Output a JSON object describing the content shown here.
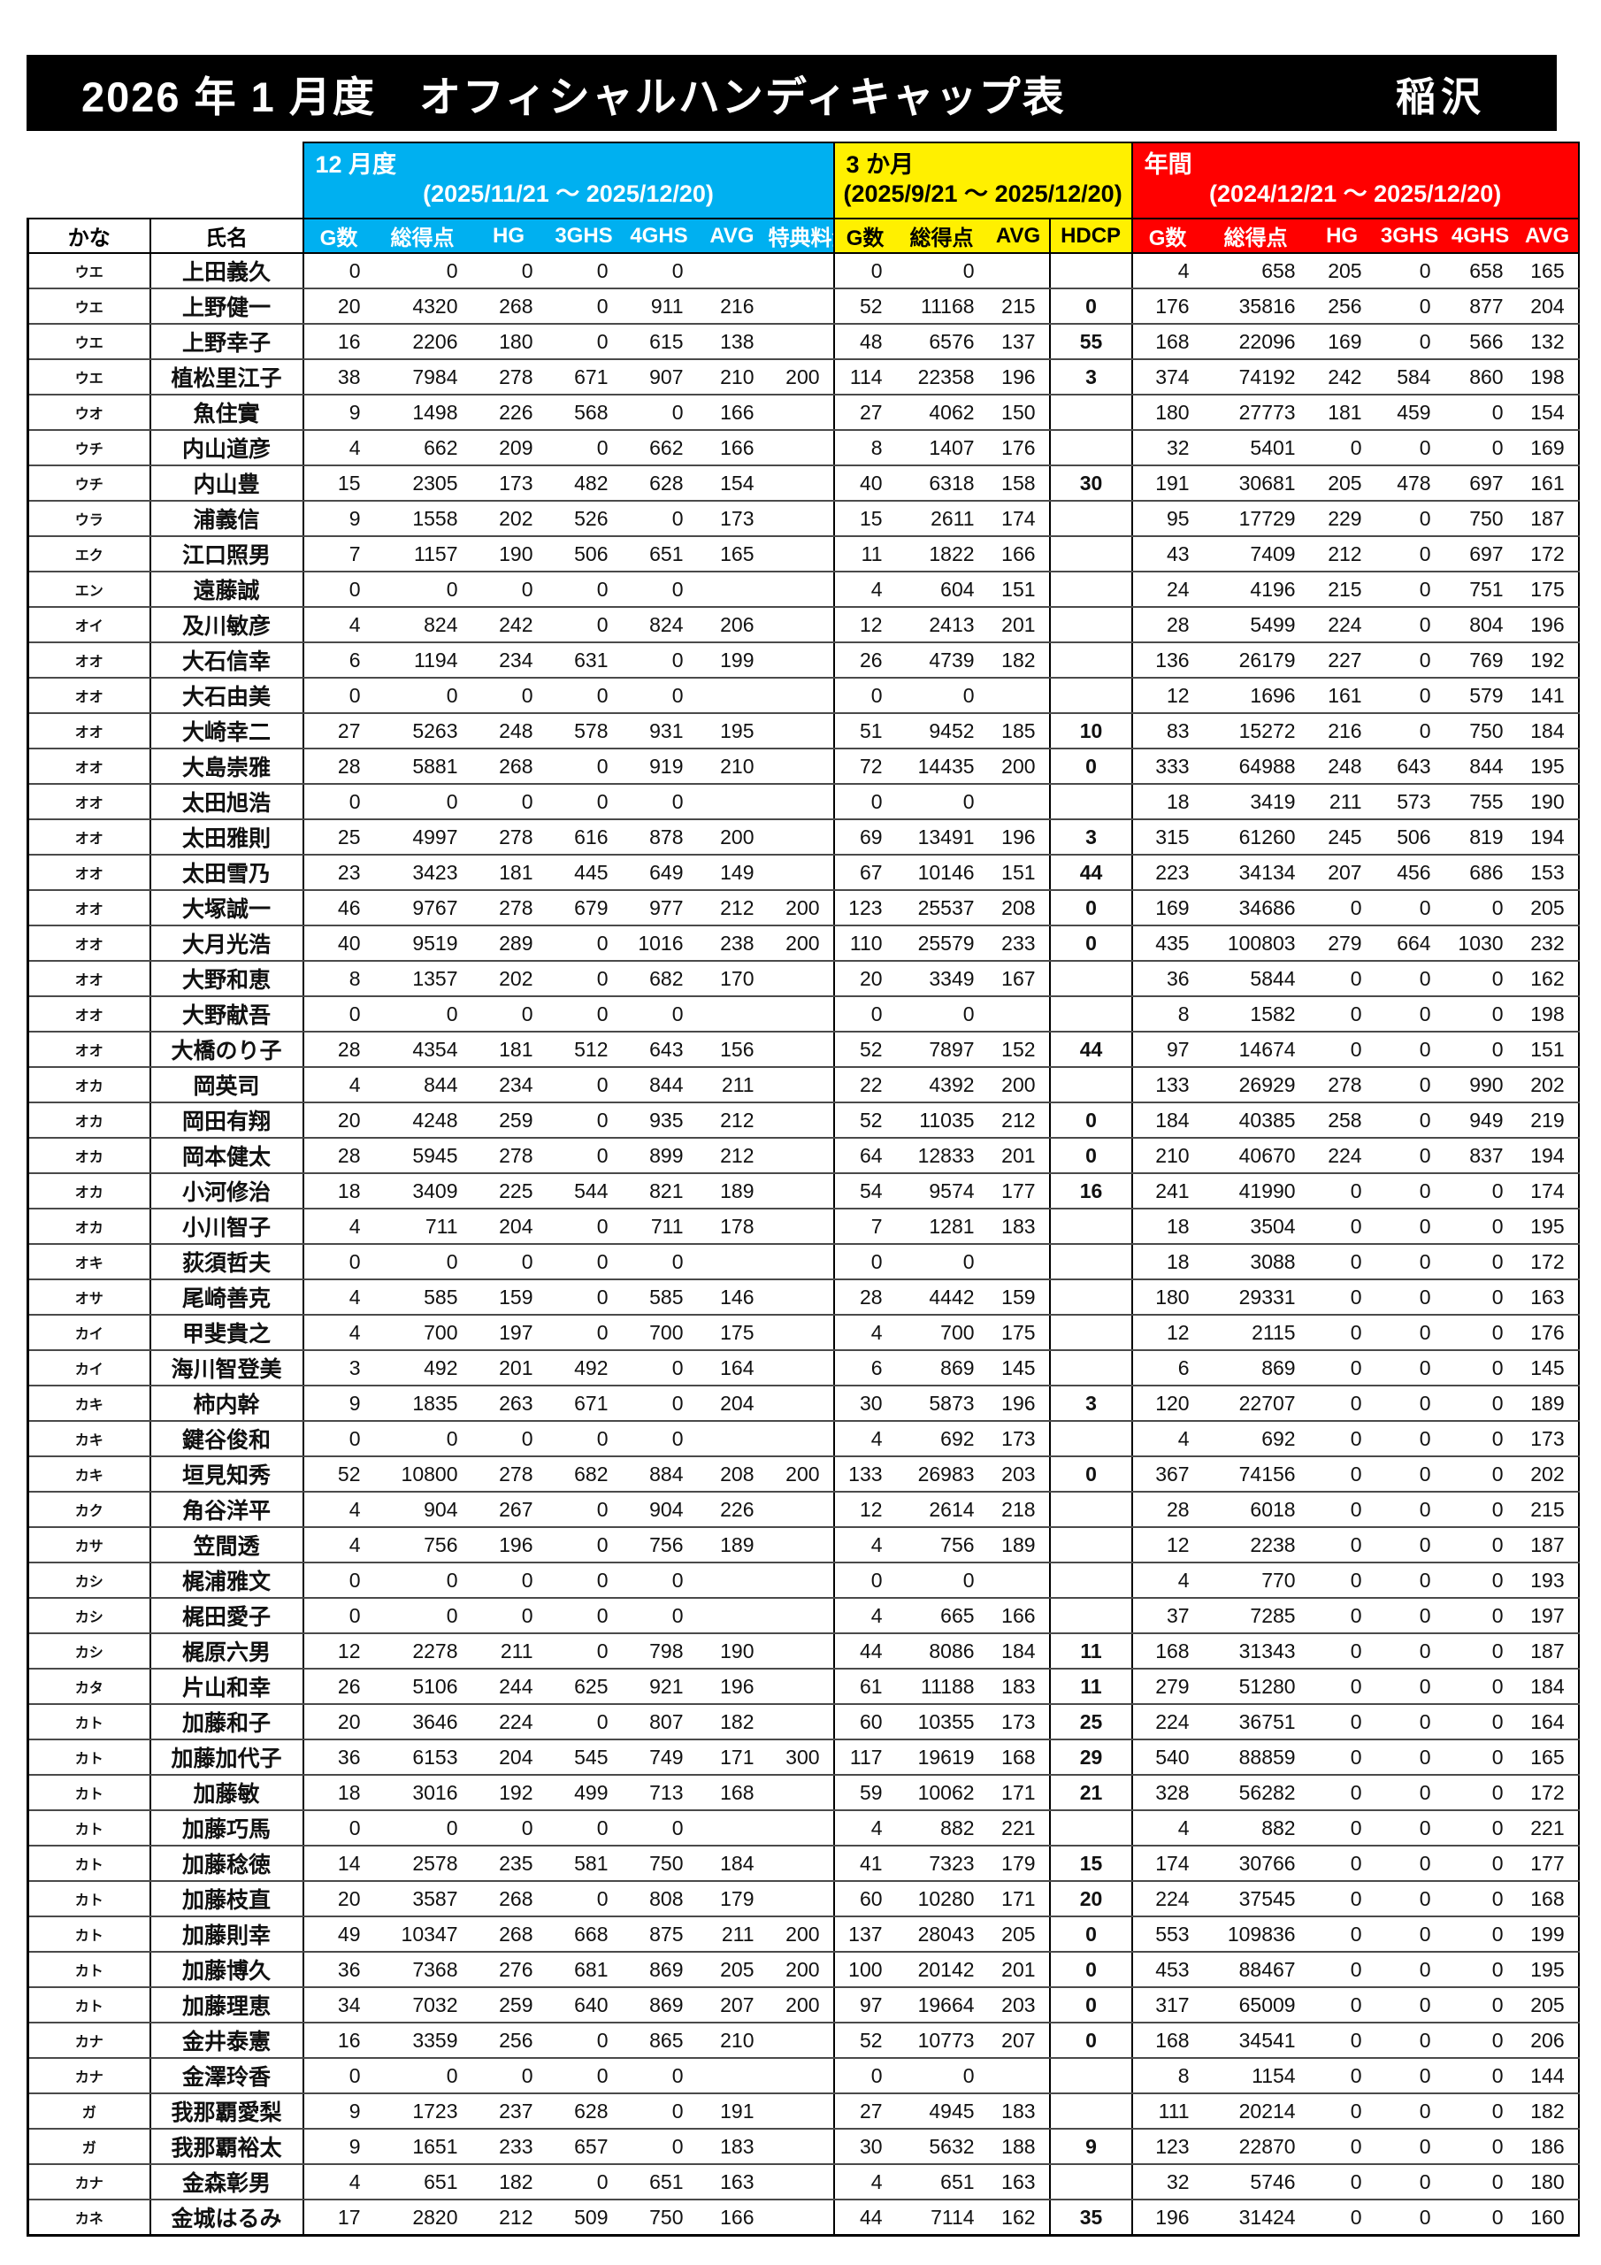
{
  "title": {
    "heading": "2026 年 1 月度　オフィシャルハンディキャップ表",
    "location": "稲沢"
  },
  "columns": {
    "kana": "かな",
    "name": "氏名"
  },
  "sections": {
    "monthly": {
      "label": "12 月度",
      "range": "(2025/11/21 ～ 2025/12/20)",
      "color": "#00B0F0",
      "headers": [
        "G数",
        "総得点",
        "HG",
        "3GHS",
        "4GHS",
        "AVG",
        "特典料金"
      ]
    },
    "quarter": {
      "label": "3 か月",
      "range": "(2025/9/21 ～ 2025/12/20)",
      "color": "#FFF000",
      "headers": [
        "G数",
        "総得点",
        "AVG"
      ]
    },
    "hdcp": {
      "label": "HDCP"
    },
    "annual": {
      "label": "年間",
      "range": "(2024/12/21 ～ 2025/12/20)",
      "color": "#FF0000",
      "headers": [
        "G数",
        "総得点",
        "HG",
        "3GHS",
        "4GHS",
        "AVG"
      ]
    }
  },
  "rows": [
    [
      "ウエ",
      "上田義久",
      "0",
      "0",
      "0",
      "0",
      "0",
      "",
      "",
      "0",
      "0",
      "",
      "",
      "4",
      "658",
      "205",
      "0",
      "658",
      "165"
    ],
    [
      "ウエ",
      "上野健一",
      "20",
      "4320",
      "268",
      "0",
      "911",
      "216",
      "",
      "52",
      "11168",
      "215",
      "0",
      "176",
      "35816",
      "256",
      "0",
      "877",
      "204"
    ],
    [
      "ウエ",
      "上野幸子",
      "16",
      "2206",
      "180",
      "0",
      "615",
      "138",
      "",
      "48",
      "6576",
      "137",
      "55",
      "168",
      "22096",
      "169",
      "0",
      "566",
      "132"
    ],
    [
      "ウエ",
      "植松里江子",
      "38",
      "7984",
      "278",
      "671",
      "907",
      "210",
      "200",
      "114",
      "22358",
      "196",
      "3",
      "374",
      "74192",
      "242",
      "584",
      "860",
      "198"
    ],
    [
      "ウオ",
      "魚住實",
      "9",
      "1498",
      "226",
      "568",
      "0",
      "166",
      "",
      "27",
      "4062",
      "150",
      "",
      "180",
      "27773",
      "181",
      "459",
      "0",
      "154"
    ],
    [
      "ウチ",
      "内山道彦",
      "4",
      "662",
      "209",
      "0",
      "662",
      "166",
      "",
      "8",
      "1407",
      "176",
      "",
      "32",
      "5401",
      "0",
      "0",
      "0",
      "169"
    ],
    [
      "ウチ",
      "内山豊",
      "15",
      "2305",
      "173",
      "482",
      "628",
      "154",
      "",
      "40",
      "6318",
      "158",
      "30",
      "191",
      "30681",
      "205",
      "478",
      "697",
      "161"
    ],
    [
      "ウラ",
      "浦義信",
      "9",
      "1558",
      "202",
      "526",
      "0",
      "173",
      "",
      "15",
      "2611",
      "174",
      "",
      "95",
      "17729",
      "229",
      "0",
      "750",
      "187"
    ],
    [
      "エク",
      "江口照男",
      "7",
      "1157",
      "190",
      "506",
      "651",
      "165",
      "",
      "11",
      "1822",
      "166",
      "",
      "43",
      "7409",
      "212",
      "0",
      "697",
      "172"
    ],
    [
      "エン",
      "遠藤誠",
      "0",
      "0",
      "0",
      "0",
      "0",
      "",
      "",
      "4",
      "604",
      "151",
      "",
      "24",
      "4196",
      "215",
      "0",
      "751",
      "175"
    ],
    [
      "オイ",
      "及川敏彦",
      "4",
      "824",
      "242",
      "0",
      "824",
      "206",
      "",
      "12",
      "2413",
      "201",
      "",
      "28",
      "5499",
      "224",
      "0",
      "804",
      "196"
    ],
    [
      "オオ",
      "大石信幸",
      "6",
      "1194",
      "234",
      "631",
      "0",
      "199",
      "",
      "26",
      "4739",
      "182",
      "",
      "136",
      "26179",
      "227",
      "0",
      "769",
      "192"
    ],
    [
      "オオ",
      "大石由美",
      "0",
      "0",
      "0",
      "0",
      "0",
      "",
      "",
      "0",
      "0",
      "",
      "",
      "12",
      "1696",
      "161",
      "0",
      "579",
      "141"
    ],
    [
      "オオ",
      "大崎幸二",
      "27",
      "5263",
      "248",
      "578",
      "931",
      "195",
      "",
      "51",
      "9452",
      "185",
      "10",
      "83",
      "15272",
      "216",
      "0",
      "750",
      "184"
    ],
    [
      "オオ",
      "大島崇雅",
      "28",
      "5881",
      "268",
      "0",
      "919",
      "210",
      "",
      "72",
      "14435",
      "200",
      "0",
      "333",
      "64988",
      "248",
      "643",
      "844",
      "195"
    ],
    [
      "オオ",
      "太田旭浩",
      "0",
      "0",
      "0",
      "0",
      "0",
      "",
      "",
      "0",
      "0",
      "",
      "",
      "18",
      "3419",
      "211",
      "573",
      "755",
      "190"
    ],
    [
      "オオ",
      "太田雅則",
      "25",
      "4997",
      "278",
      "616",
      "878",
      "200",
      "",
      "69",
      "13491",
      "196",
      "3",
      "315",
      "61260",
      "245",
      "506",
      "819",
      "194"
    ],
    [
      "オオ",
      "太田雪乃",
      "23",
      "3423",
      "181",
      "445",
      "649",
      "149",
      "",
      "67",
      "10146",
      "151",
      "44",
      "223",
      "34134",
      "207",
      "456",
      "686",
      "153"
    ],
    [
      "オオ",
      "大塚誠一",
      "46",
      "9767",
      "278",
      "679",
      "977",
      "212",
      "200",
      "123",
      "25537",
      "208",
      "0",
      "169",
      "34686",
      "0",
      "0",
      "0",
      "205"
    ],
    [
      "オオ",
      "大月光浩",
      "40",
      "9519",
      "289",
      "0",
      "1016",
      "238",
      "200",
      "110",
      "25579",
      "233",
      "0",
      "435",
      "100803",
      "279",
      "664",
      "1030",
      "232"
    ],
    [
      "オオ",
      "大野和恵",
      "8",
      "1357",
      "202",
      "0",
      "682",
      "170",
      "",
      "20",
      "3349",
      "167",
      "",
      "36",
      "5844",
      "0",
      "0",
      "0",
      "162"
    ],
    [
      "オオ",
      "大野献吾",
      "0",
      "0",
      "0",
      "0",
      "0",
      "",
      "",
      "0",
      "0",
      "",
      "",
      "8",
      "1582",
      "0",
      "0",
      "0",
      "198"
    ],
    [
      "オオ",
      "大橋のり子",
      "28",
      "4354",
      "181",
      "512",
      "643",
      "156",
      "",
      "52",
      "7897",
      "152",
      "44",
      "97",
      "14674",
      "0",
      "0",
      "0",
      "151"
    ],
    [
      "オカ",
      "岡英司",
      "4",
      "844",
      "234",
      "0",
      "844",
      "211",
      "",
      "22",
      "4392",
      "200",
      "",
      "133",
      "26929",
      "278",
      "0",
      "990",
      "202"
    ],
    [
      "オカ",
      "岡田有翔",
      "20",
      "4248",
      "259",
      "0",
      "935",
      "212",
      "",
      "52",
      "11035",
      "212",
      "0",
      "184",
      "40385",
      "258",
      "0",
      "949",
      "219"
    ],
    [
      "オカ",
      "岡本健太",
      "28",
      "5945",
      "278",
      "0",
      "899",
      "212",
      "",
      "64",
      "12833",
      "201",
      "0",
      "210",
      "40670",
      "224",
      "0",
      "837",
      "194"
    ],
    [
      "オカ",
      "小河修治",
      "18",
      "3409",
      "225",
      "544",
      "821",
      "189",
      "",
      "54",
      "9574",
      "177",
      "16",
      "241",
      "41990",
      "0",
      "0",
      "0",
      "174"
    ],
    [
      "オカ",
      "小川智子",
      "4",
      "711",
      "204",
      "0",
      "711",
      "178",
      "",
      "7",
      "1281",
      "183",
      "",
      "18",
      "3504",
      "0",
      "0",
      "0",
      "195"
    ],
    [
      "オキ",
      "荻須哲夫",
      "0",
      "0",
      "0",
      "0",
      "0",
      "",
      "",
      "0",
      "0",
      "",
      "",
      "18",
      "3088",
      "0",
      "0",
      "0",
      "172"
    ],
    [
      "オサ",
      "尾崎善克",
      "4",
      "585",
      "159",
      "0",
      "585",
      "146",
      "",
      "28",
      "4442",
      "159",
      "",
      "180",
      "29331",
      "0",
      "0",
      "0",
      "163"
    ],
    [
      "カイ",
      "甲斐貴之",
      "4",
      "700",
      "197",
      "0",
      "700",
      "175",
      "",
      "4",
      "700",
      "175",
      "",
      "12",
      "2115",
      "0",
      "0",
      "0",
      "176"
    ],
    [
      "カイ",
      "海川智登美",
      "3",
      "492",
      "201",
      "492",
      "0",
      "164",
      "",
      "6",
      "869",
      "145",
      "",
      "6",
      "869",
      "0",
      "0",
      "0",
      "145"
    ],
    [
      "カキ",
      "柿内幹",
      "9",
      "1835",
      "263",
      "671",
      "0",
      "204",
      "",
      "30",
      "5873",
      "196",
      "3",
      "120",
      "22707",
      "0",
      "0",
      "0",
      "189"
    ],
    [
      "カキ",
      "鍵谷俊和",
      "0",
      "0",
      "0",
      "0",
      "0",
      "",
      "",
      "4",
      "692",
      "173",
      "",
      "4",
      "692",
      "0",
      "0",
      "0",
      "173"
    ],
    [
      "カキ",
      "垣見知秀",
      "52",
      "10800",
      "278",
      "682",
      "884",
      "208",
      "200",
      "133",
      "26983",
      "203",
      "0",
      "367",
      "74156",
      "0",
      "0",
      "0",
      "202"
    ],
    [
      "カク",
      "角谷洋平",
      "4",
      "904",
      "267",
      "0",
      "904",
      "226",
      "",
      "12",
      "2614",
      "218",
      "",
      "28",
      "6018",
      "0",
      "0",
      "0",
      "215"
    ],
    [
      "カサ",
      "笠間透",
      "4",
      "756",
      "196",
      "0",
      "756",
      "189",
      "",
      "4",
      "756",
      "189",
      "",
      "12",
      "2238",
      "0",
      "0",
      "0",
      "187"
    ],
    [
      "カシ",
      "梶浦雅文",
      "0",
      "0",
      "0",
      "0",
      "0",
      "",
      "",
      "0",
      "0",
      "",
      "",
      "4",
      "770",
      "0",
      "0",
      "0",
      "193"
    ],
    [
      "カシ",
      "梶田愛子",
      "0",
      "0",
      "0",
      "0",
      "0",
      "",
      "",
      "4",
      "665",
      "166",
      "",
      "37",
      "7285",
      "0",
      "0",
      "0",
      "197"
    ],
    [
      "カシ",
      "梶原六男",
      "12",
      "2278",
      "211",
      "0",
      "798",
      "190",
      "",
      "44",
      "8086",
      "184",
      "11",
      "168",
      "31343",
      "0",
      "0",
      "0",
      "187"
    ],
    [
      "カタ",
      "片山和幸",
      "26",
      "5106",
      "244",
      "625",
      "921",
      "196",
      "",
      "61",
      "11188",
      "183",
      "11",
      "279",
      "51280",
      "0",
      "0",
      "0",
      "184"
    ],
    [
      "カト",
      "加藤和子",
      "20",
      "3646",
      "224",
      "0",
      "807",
      "182",
      "",
      "60",
      "10355",
      "173",
      "25",
      "224",
      "36751",
      "0",
      "0",
      "0",
      "164"
    ],
    [
      "カト",
      "加藤加代子",
      "36",
      "6153",
      "204",
      "545",
      "749",
      "171",
      "300",
      "117",
      "19619",
      "168",
      "29",
      "540",
      "88859",
      "0",
      "0",
      "0",
      "165"
    ],
    [
      "カト",
      "加藤敏",
      "18",
      "3016",
      "192",
      "499",
      "713",
      "168",
      "",
      "59",
      "10062",
      "171",
      "21",
      "328",
      "56282",
      "0",
      "0",
      "0",
      "172"
    ],
    [
      "カト",
      "加藤巧馬",
      "0",
      "0",
      "0",
      "0",
      "0",
      "",
      "",
      "4",
      "882",
      "221",
      "",
      "4",
      "882",
      "0",
      "0",
      "0",
      "221"
    ],
    [
      "カト",
      "加藤稔徳",
      "14",
      "2578",
      "235",
      "581",
      "750",
      "184",
      "",
      "41",
      "7323",
      "179",
      "15",
      "174",
      "30766",
      "0",
      "0",
      "0",
      "177"
    ],
    [
      "カト",
      "加藤枝直",
      "20",
      "3587",
      "268",
      "0",
      "808",
      "179",
      "",
      "60",
      "10280",
      "171",
      "20",
      "224",
      "37545",
      "0",
      "0",
      "0",
      "168"
    ],
    [
      "カト",
      "加藤則幸",
      "49",
      "10347",
      "268",
      "668",
      "875",
      "211",
      "200",
      "137",
      "28043",
      "205",
      "0",
      "553",
      "109836",
      "0",
      "0",
      "0",
      "199"
    ],
    [
      "カト",
      "加藤博久",
      "36",
      "7368",
      "276",
      "681",
      "869",
      "205",
      "200",
      "100",
      "20142",
      "201",
      "0",
      "453",
      "88467",
      "0",
      "0",
      "0",
      "195"
    ],
    [
      "カト",
      "加藤理恵",
      "34",
      "7032",
      "259",
      "640",
      "869",
      "207",
      "200",
      "97",
      "19664",
      "203",
      "0",
      "317",
      "65009",
      "0",
      "0",
      "0",
      "205"
    ],
    [
      "カナ",
      "金井泰憲",
      "16",
      "3359",
      "256",
      "0",
      "865",
      "210",
      "",
      "52",
      "10773",
      "207",
      "0",
      "168",
      "34541",
      "0",
      "0",
      "0",
      "206"
    ],
    [
      "カナ",
      "金澤玲香",
      "0",
      "0",
      "0",
      "0",
      "0",
      "",
      "",
      "0",
      "0",
      "",
      "",
      "8",
      "1154",
      "0",
      "0",
      "0",
      "144"
    ],
    [
      "ガ",
      "我那覇愛梨",
      "9",
      "1723",
      "237",
      "628",
      "0",
      "191",
      "",
      "27",
      "4945",
      "183",
      "",
      "111",
      "20214",
      "0",
      "0",
      "0",
      "182"
    ],
    [
      "ガ",
      "我那覇裕太",
      "9",
      "1651",
      "233",
      "657",
      "0",
      "183",
      "",
      "30",
      "5632",
      "188",
      "9",
      "123",
      "22870",
      "0",
      "0",
      "0",
      "186"
    ],
    [
      "カナ",
      "金森彰男",
      "4",
      "651",
      "182",
      "0",
      "651",
      "163",
      "",
      "4",
      "651",
      "163",
      "",
      "32",
      "5746",
      "0",
      "0",
      "0",
      "180"
    ],
    [
      "カネ",
      "金城はるみ",
      "17",
      "2820",
      "212",
      "509",
      "750",
      "166",
      "",
      "44",
      "7114",
      "162",
      "35",
      "196",
      "31424",
      "0",
      "0",
      "0",
      "160"
    ]
  ]
}
